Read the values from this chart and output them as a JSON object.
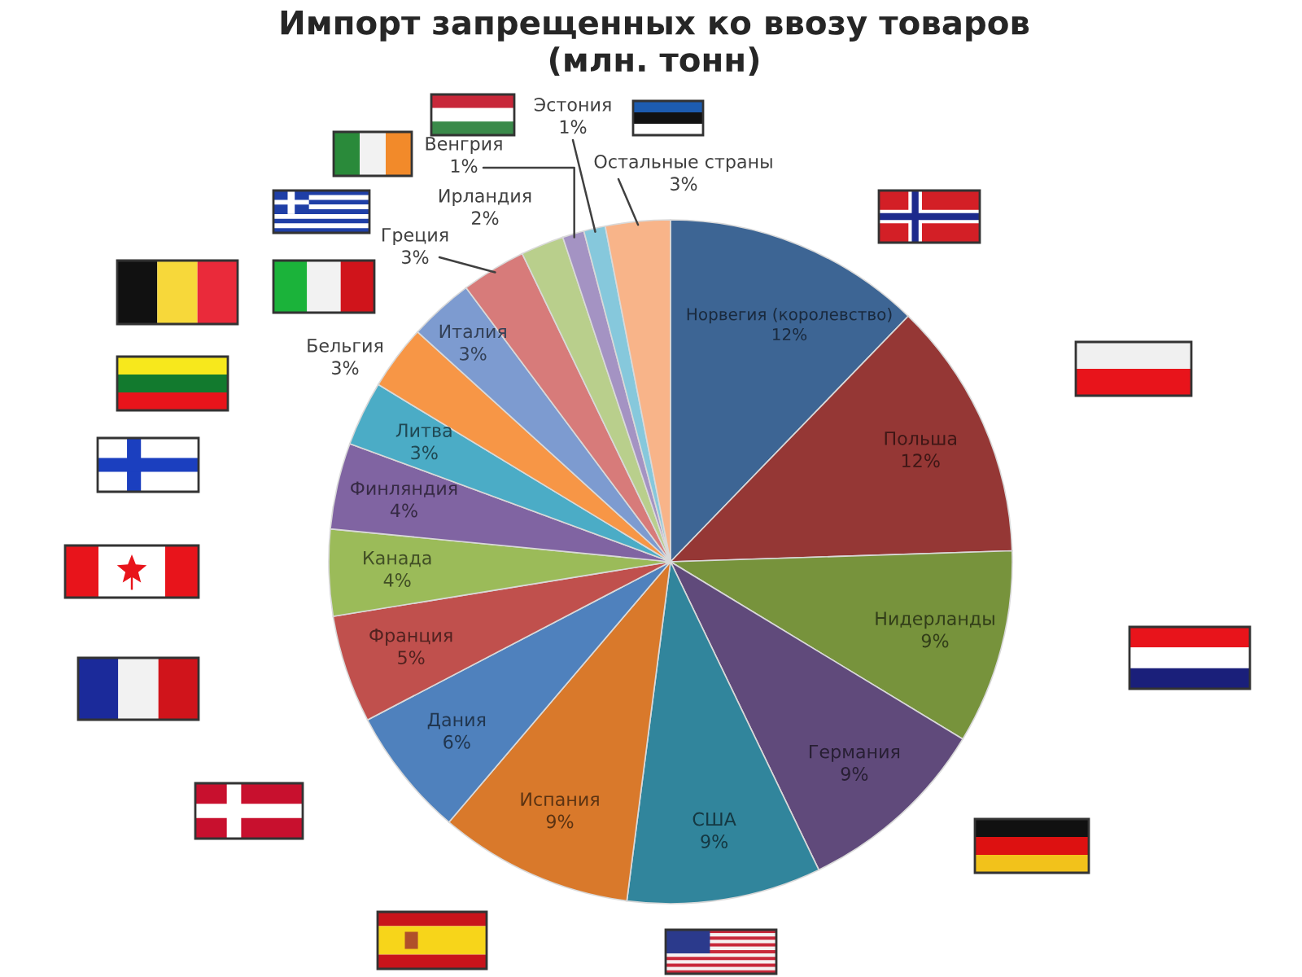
{
  "chart_data": {
    "type": "pie",
    "title": "Импорт запрещенных ко ввозу товаров\n(млн. тонн)",
    "categories": [
      "Норвегия (королевство)",
      "Польша",
      "Нидерланды",
      "Германия",
      "США",
      "Испания",
      "Дания",
      "Франция",
      "Канада",
      "Финляндия",
      "Литва",
      "Бельгия",
      "Италия",
      "Греция",
      "Ирландия",
      "Венгрия",
      "Эстония",
      "Остальные страны"
    ],
    "values": [
      12,
      12,
      9,
      9,
      9,
      9,
      6,
      5,
      4,
      4,
      3,
      3,
      3,
      3,
      2,
      1,
      1,
      3
    ],
    "value_labels": [
      "12%",
      "12%",
      "9%",
      "9%",
      "9%",
      "9%",
      "6%",
      "5%",
      "4%",
      "4%",
      "3%",
      "3%",
      "3%",
      "3%",
      "2%",
      "1%",
      "1%",
      "3%"
    ],
    "colors": [
      "#3d6594",
      "#953735",
      "#77933c",
      "#604a7b",
      "#31859c",
      "#d9792b",
      "#4f81bd",
      "#c0504d",
      "#9bbb59",
      "#8064a2",
      "#4bacc6",
      "#f79646",
      "#7d9bd0",
      "#d77b7a",
      "#b9cf8c",
      "#a493c3",
      "#86c8dc",
      "#f8b489"
    ]
  }
}
